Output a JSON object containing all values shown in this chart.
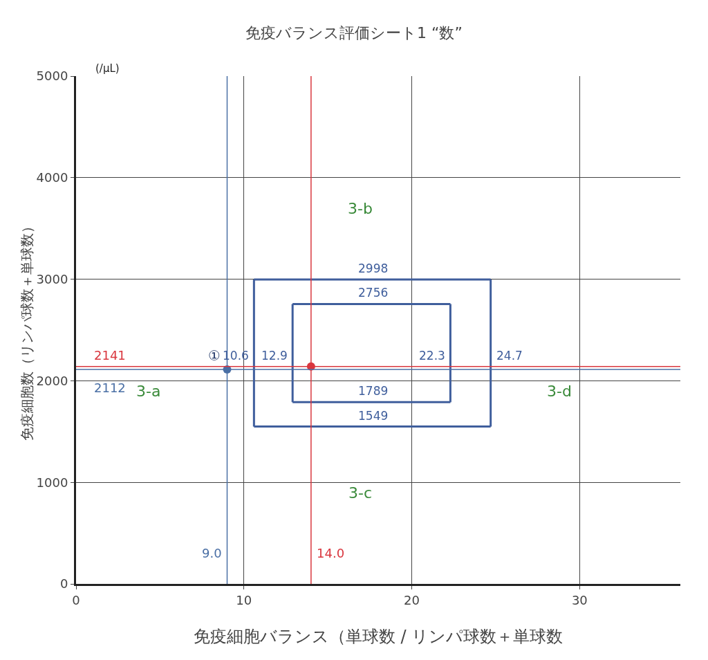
{
  "chart_data": {
    "type": "line",
    "title": "免疫バランス評価シート1 “数”",
    "xlabel": "免疫細胞バランス（単球数 / リンパ球数＋単球数",
    "ylabel": "免疫細胞数（リンパ球数＋単球数）",
    "xlim": [
      0,
      36
    ],
    "xticks": [
      0,
      10,
      20,
      30
    ],
    "ylim": [
      0,
      5000
    ],
    "yticks": [
      0,
      1000,
      2000,
      3000,
      4000,
      5000
    ],
    "grid": true,
    "legend": false,
    "series": [
      {
        "color": "#3f5e9c",
        "x": [
          10.6,
          24.7
        ],
        "values": [
          2998,
          2998
        ]
      },
      {
        "color": "#3f5e9c",
        "x": [
          10.6,
          24.7
        ],
        "values": [
          1549,
          1549
        ]
      },
      {
        "color": "#3f5e9c",
        "x": [
          10.6,
          10.6
        ],
        "values": [
          1549,
          2998
        ]
      },
      {
        "color": "#3f5e9c",
        "x": [
          24.7,
          24.7
        ],
        "values": [
          1549,
          2998
        ]
      },
      {
        "color": "#3f5e9c",
        "x": [
          12.9,
          22.3
        ],
        "values": [
          2756,
          2756
        ]
      },
      {
        "color": "#3f5e9c",
        "x": [
          12.9,
          22.3
        ],
        "values": [
          1789,
          1789
        ]
      },
      {
        "color": "#3f5e9c",
        "x": [
          12.9,
          12.9
        ],
        "values": [
          1789,
          2756
        ]
      },
      {
        "color": "#3f5e9c",
        "x": [
          22.3,
          22.3
        ],
        "values": [
          1789,
          2756
        ]
      },
      {
        "type": "scatter",
        "color": "#d9363e",
        "marker": "circle",
        "x": [
          14.0
        ],
        "values": [
          2141
        ]
      },
      {
        "type": "scatter",
        "color": "#4a6fa5",
        "marker": "circle",
        "x": [
          9.0
        ],
        "values": [
          2112
        ]
      }
    ],
    "ref_lines": [
      {
        "axis": "x",
        "value": 9.0,
        "label": "9.0",
        "color": "#4a6fa5"
      },
      {
        "axis": "x",
        "value": 14.0,
        "label": "14.0",
        "color": "#d9363e"
      },
      {
        "axis": "y",
        "value": 2141,
        "label": "2141",
        "color": "#d9363e"
      },
      {
        "axis": "y",
        "value": 2112,
        "label": "2112",
        "color": "#4a6fa5"
      }
    ],
    "annotations": [
      "(/μL)",
      "3-a",
      "3-b",
      "3-c",
      "3-d",
      {
        "text": "①",
        "x": 9.0,
        "y": 2112
      },
      {
        "text": "10.6",
        "x": 10.6,
        "y": 2141
      },
      {
        "text": "12.9",
        "x": 12.9,
        "y": 2141
      },
      {
        "text": "22.3",
        "x": 22.3,
        "y": 2141
      },
      {
        "text": "24.7",
        "x": 24.7,
        "y": 2141
      },
      {
        "text": "2998",
        "x": 17.7,
        "y": 2998
      },
      {
        "text": "2756",
        "x": 17.7,
        "y": 2756
      },
      {
        "text": "1789",
        "x": 17.7,
        "y": 1789
      },
      {
        "text": "1549",
        "x": 17.7,
        "y": 1549
      }
    ]
  }
}
